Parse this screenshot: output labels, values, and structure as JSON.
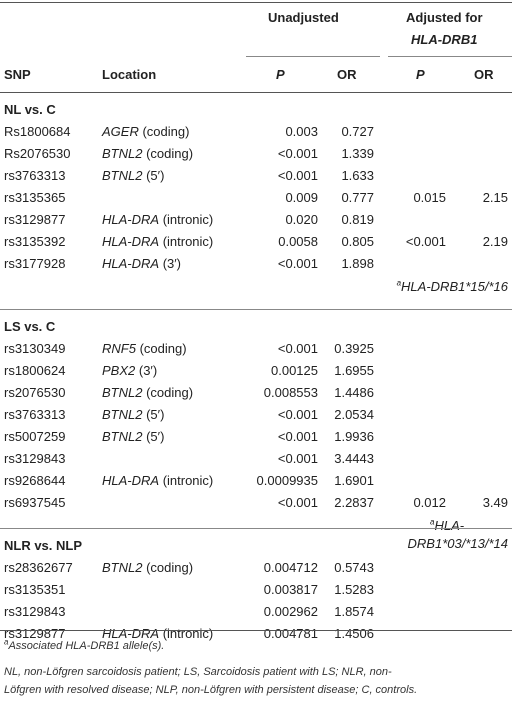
{
  "header": {
    "unadjusted": "Unadjusted",
    "adjusted_line1": "Adjusted for",
    "adjusted_line2": "HLA-DRB1",
    "snp": "SNP",
    "location": "Location",
    "p": "P",
    "or": "OR",
    "p_adj": "P",
    "or_adj": "OR"
  },
  "groups": [
    {
      "title": "NL vs. C",
      "rows": [
        {
          "snp": "Rs1800684",
          "gene": "AGER",
          "loc": " (coding)",
          "p": "0.003",
          "or": "0.727",
          "p_adj": "",
          "or_adj": ""
        },
        {
          "snp": "Rs2076530",
          "gene": "BTNL2",
          "loc": " (coding)",
          "p": "<0.001",
          "or": "1.339",
          "p_adj": "",
          "or_adj": ""
        },
        {
          "snp": "rs3763313",
          "gene": "BTNL2",
          "loc": " (5′)",
          "p": "<0.001",
          "or": "1.633",
          "p_adj": "",
          "or_adj": ""
        },
        {
          "snp": "rs3135365",
          "gene": "",
          "loc": "",
          "p": "0.009",
          "or": "0.777",
          "p_adj": "0.015",
          "or_adj": "2.15"
        },
        {
          "snp": "rs3129877",
          "gene": "HLA-DRA",
          "loc": " (intronic)",
          "p": "0.020",
          "or": "0.819",
          "p_adj": "",
          "or_adj": ""
        },
        {
          "snp": "rs3135392",
          "gene": "HLA-DRA",
          "loc": " (intronic)",
          "p": "0.0058",
          "or": "0.805",
          "p_adj": "<0.001",
          "or_adj": "2.19"
        },
        {
          "snp": "rs3177928",
          "gene": "HLA-DRA",
          "loc": " (3′)",
          "p": "<0.001",
          "or": "1.898",
          "p_adj": "",
          "or_adj": ""
        }
      ],
      "allele_note": "HLA-DRB1*15/*16",
      "allele_mark": "a"
    },
    {
      "title": "LS vs. C",
      "rows": [
        {
          "snp": "rs3130349",
          "gene": "RNF5",
          "loc": " (coding)",
          "p": "<0.001",
          "or": "0.3925",
          "p_adj": "",
          "or_adj": ""
        },
        {
          "snp": "rs1800624",
          "gene": "PBX2",
          "loc": " (3′)",
          "p": "0.00125",
          "or": "1.6955",
          "p_adj": "",
          "or_adj": ""
        },
        {
          "snp": "rs2076530",
          "gene": "BTNL2",
          "loc": " (coding)",
          "p": "0.008553",
          "or": "1.4486",
          "p_adj": "",
          "or_adj": ""
        },
        {
          "snp": "rs3763313",
          "gene": "BTNL2",
          "loc": " (5′)",
          "p": "<0.001",
          "or": "2.0534",
          "p_adj": "",
          "or_adj": ""
        },
        {
          "snp": "rs5007259",
          "gene": "BTNL2",
          "loc": " (5′)",
          "p": "<0.001",
          "or": "1.9936",
          "p_adj": "",
          "or_adj": ""
        },
        {
          "snp": "rs3129843",
          "gene": "",
          "loc": "",
          "p": "<0.001",
          "or": "3.4443",
          "p_adj": "",
          "or_adj": ""
        },
        {
          "snp": "rs9268644",
          "gene": "HLA-DRA",
          "loc": " (intronic)",
          "p": "0.0009935",
          "or": "1.6901",
          "p_adj": "",
          "or_adj": ""
        },
        {
          "snp": "rs6937545",
          "gene": "",
          "loc": "",
          "p": "<0.001",
          "or": "2.2837",
          "p_adj": "0.012",
          "or_adj": "3.49"
        }
      ],
      "allele_note_line1": "HLA-",
      "allele_note_line2": "DRB1*03/*13/*14",
      "allele_mark": "a"
    },
    {
      "title": "NLR vs. NLP",
      "rows": [
        {
          "snp": "rs28362677",
          "gene": "BTNL2",
          "loc": " (coding)",
          "p": "0.004712",
          "or": "0.5743",
          "p_adj": "",
          "or_adj": ""
        },
        {
          "snp": "rs3135351",
          "gene": "",
          "loc": "",
          "p": "0.003817",
          "or": "1.5283",
          "p_adj": "",
          "or_adj": ""
        },
        {
          "snp": "rs3129843",
          "gene": "",
          "loc": "",
          "p": "0.002962",
          "or": "1.8574",
          "p_adj": "",
          "or_adj": ""
        },
        {
          "snp": "rs3129877",
          "gene": "HLA-DRA",
          "loc": " (intronic)",
          "p": "0.004781",
          "or": "1.4506",
          "p_adj": "",
          "or_adj": ""
        }
      ]
    }
  ],
  "footnotes": {
    "mark": "a",
    "note1": "Associated HLA-DRB1 allele(s).",
    "note2_line1": "NL, non-Löfgren sarcoidosis patient; LS, Sarcoidosis patient with LS; NLR, non-",
    "note2_line2": "Löfgren with resolved disease; NLP, non-Löfgren with persistent disease; C, controls."
  }
}
